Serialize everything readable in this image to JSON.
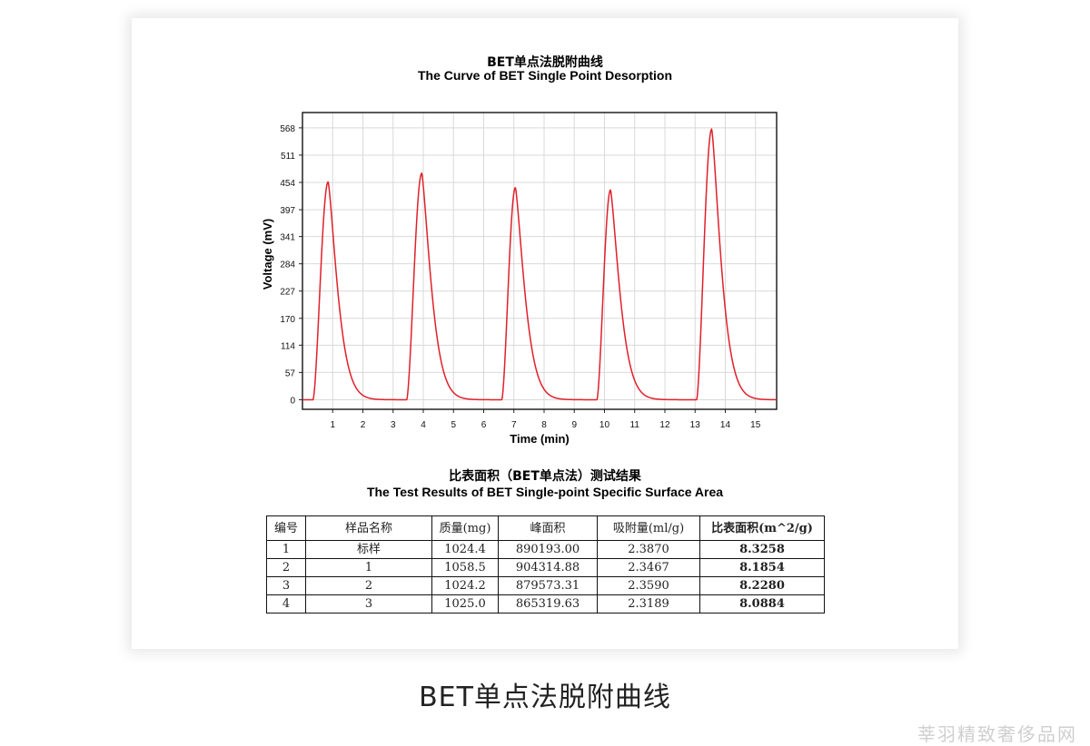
{
  "chart": {
    "title_cn": "BET单点法脱附曲线",
    "title_en": "The Curve of BET Single Point Desorption"
  },
  "chart_data": {
    "type": "line",
    "title": "The Curve of BET Single Point Desorption",
    "xlabel": "Time (min)",
    "ylabel": "Voltage (mV)",
    "xlim": [
      0,
      15.7
    ],
    "ylim": [
      -20,
      600
    ],
    "xticks": [
      "1",
      "2",
      "3",
      "4",
      "5",
      "6",
      "7",
      "8",
      "9",
      "10",
      "11",
      "12",
      "13",
      "14",
      "15"
    ],
    "yticks": [
      "0",
      "57",
      "114",
      "170",
      "227",
      "284",
      "341",
      "397",
      "454",
      "511",
      "568"
    ],
    "grid": true,
    "legend": false,
    "series_color": "#e0202a",
    "peaks": [
      {
        "start": 0.35,
        "apex_time": 0.85,
        "height": 455
      },
      {
        "start": 3.45,
        "apex_time": 3.95,
        "height": 473
      },
      {
        "start": 6.6,
        "apex_time": 7.05,
        "height": 443
      },
      {
        "start": 9.75,
        "apex_time": 10.2,
        "height": 438
      },
      {
        "start": 13.05,
        "apex_time": 13.55,
        "height": 565
      }
    ]
  },
  "table": {
    "title_cn": "比表面积（BET单点法）测试结果",
    "title_en": "The Test Results of BET Single-point Specific Surface Area",
    "headers": [
      "编号",
      "样品名称",
      "质量(mg)",
      "峰面积",
      "吸附量(ml/g)",
      "比表面积(m^2/g)"
    ],
    "rows": [
      [
        "1",
        "标样",
        "1024.4",
        "890193.00",
        "2.3870",
        "8.3258"
      ],
      [
        "2",
        "1",
        "1058.5",
        "904314.88",
        "2.3467",
        "8.1854"
      ],
      [
        "3",
        "2",
        "1024.2",
        "879573.31",
        "2.3590",
        "8.2280"
      ],
      [
        "4",
        "3",
        "1025.0",
        "865319.63",
        "2.3189",
        "8.0884"
      ]
    ]
  },
  "caption": "BET单点法脱附曲线",
  "watermark": "莘羽精致奢侈品网"
}
